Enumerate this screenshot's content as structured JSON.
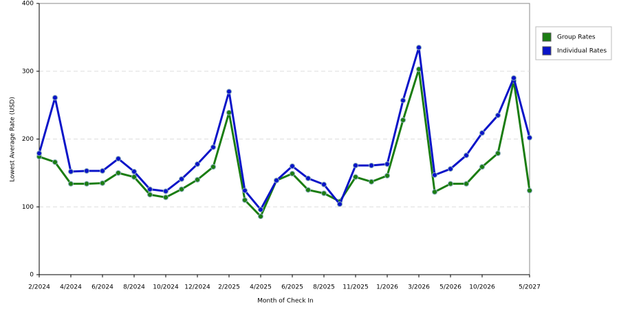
{
  "chart_data": {
    "type": "line",
    "xlabel": "Month of Check In",
    "ylabel": "Lowest Average Rate (USD)",
    "categories": [
      "2/2024",
      null,
      "4/2024",
      null,
      "6/2024",
      null,
      "8/2024",
      null,
      "10/2024",
      null,
      "12/2024",
      null,
      "2/2025",
      null,
      "4/2025",
      null,
      "6/2025",
      null,
      "8/2025",
      null,
      "11/2025",
      null,
      "1/2026",
      null,
      "3/2026",
      null,
      "5/2026",
      null,
      "10/2026",
      null,
      null,
      "5/2027"
    ],
    "series": [
      {
        "name": "Group Rates",
        "color": "#1b7d12",
        "values": [
          174,
          166,
          134,
          134,
          135,
          150,
          144,
          118,
          114,
          126,
          140,
          159,
          239,
          110,
          86,
          139,
          149,
          125,
          120,
          108,
          144,
          137,
          146,
          228,
          303,
          122,
          134,
          134,
          159,
          179,
          286,
          124
        ]
      },
      {
        "name": "Individual Rates",
        "color": "#0a14c8",
        "values": [
          179,
          261,
          152,
          153,
          153,
          171,
          152,
          126,
          123,
          141,
          163,
          188,
          270,
          124,
          96,
          139,
          160,
          142,
          133,
          104,
          161,
          161,
          163,
          257,
          335,
          147,
          156,
          176,
          209,
          235,
          290,
          202
        ]
      }
    ],
    "ylim": [
      0,
      400
    ],
    "yticks": [
      0,
      100,
      200,
      300,
      400
    ],
    "grid": true,
    "legend": "right"
  }
}
